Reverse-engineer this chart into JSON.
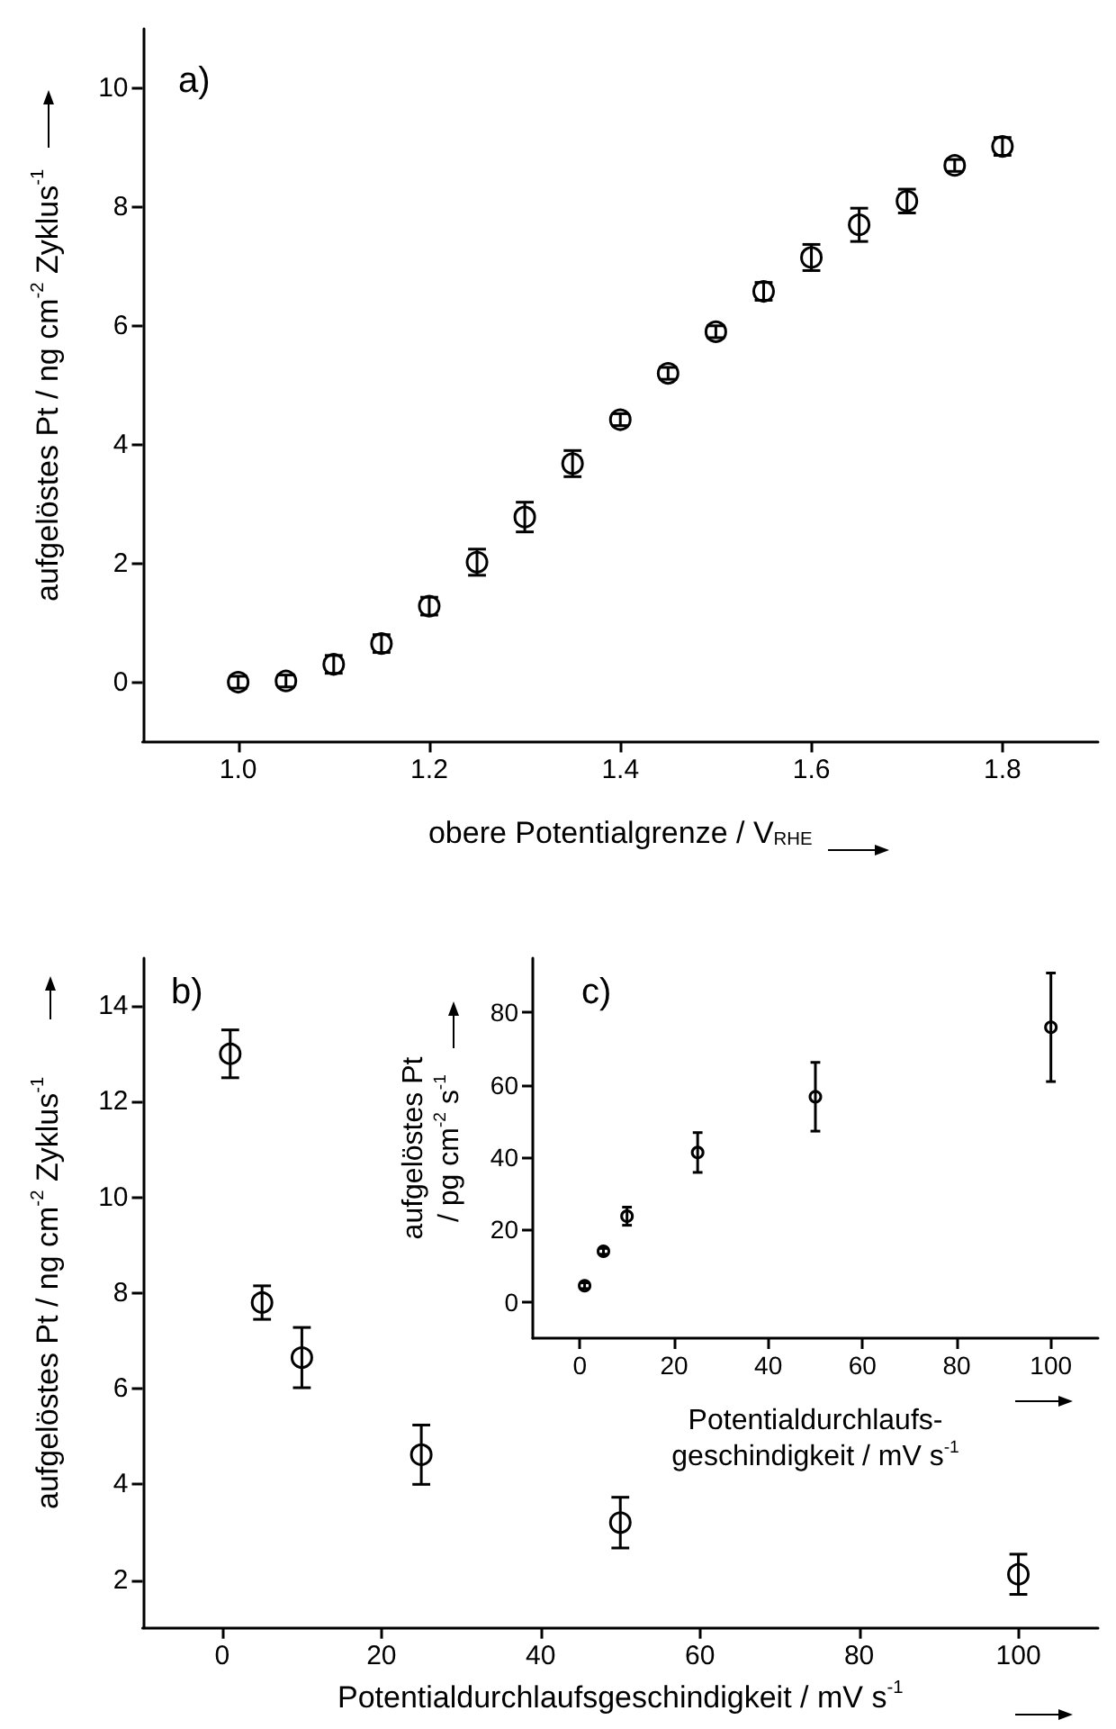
{
  "chart_data": [
    {
      "type": "scatter",
      "title": "a)",
      "xlabel": "obere Potentialgrenze / V$_{RHE}$",
      "ylabel": "aufgelöstes Pt / ng cm$^{-2}$ Zyklus$^{-1}$",
      "color": "#000000",
      "marker": "circle",
      "grid": false,
      "x": [
        1.0,
        1.05,
        1.1,
        1.15,
        1.2,
        1.25,
        1.3,
        1.35,
        1.4,
        1.45,
        1.5,
        1.55,
        1.6,
        1.65,
        1.7,
        1.75,
        1.8
      ],
      "values": [
        0,
        0.02,
        0.3,
        0.65,
        1.28,
        2.02,
        2.78,
        3.68,
        4.42,
        5.2,
        5.9,
        6.58,
        7.15,
        7.7,
        8.1,
        8.7,
        9.02
      ],
      "errors": [
        0.1,
        0.1,
        0.15,
        0.15,
        0.15,
        0.22,
        0.25,
        0.22,
        0.1,
        0.1,
        0.1,
        0.15,
        0.22,
        0.28,
        0.2,
        0.1,
        0.15
      ],
      "xlim": [
        0.9,
        1.9
      ],
      "xticks": [
        {
          "value": 1.0,
          "label": "1.0"
        },
        1.2,
        1.4,
        1.6,
        1.8
      ],
      "ylim": [
        -1,
        11
      ],
      "yticks": [
        0,
        2,
        4,
        6,
        8,
        10
      ]
    },
    {
      "type": "scatter",
      "title": "b)",
      "xlabel": "Potentialdurchlaufsgeschindigkeit / mV s$^{-1}$",
      "ylabel": "aufgelöstes Pt / ng cm$^{-2}$ Zyklus$^{-1}$",
      "color": "#000000",
      "marker": "circle",
      "grid": false,
      "x": [
        1,
        5,
        10,
        25,
        50,
        100
      ],
      "values": [
        13.0,
        7.8,
        6.65,
        4.62,
        3.2,
        2.12
      ],
      "errors": [
        0.5,
        0.35,
        0.63,
        0.62,
        0.53,
        0.42
      ],
      "xlim": [
        -10,
        110
      ],
      "xticks": [
        0,
        20,
        40,
        60,
        80,
        100
      ],
      "ylim": [
        1,
        15
      ],
      "yticks": [
        2,
        4,
        6,
        8,
        10,
        12,
        14
      ]
    },
    {
      "type": "scatter",
      "title": "c)",
      "xlabel": "Potentialdurchlaufs-\ngeschindigkeit / mV s$^{-1}$",
      "ylabel": "aufgelöstes Pt\n/ pg cm$^{-2}$ s$^{-1}$",
      "color": "#000000",
      "marker": "circle",
      "grid": false,
      "x": [
        1,
        5,
        10,
        25,
        50,
        100
      ],
      "values": [
        4.5,
        14,
        23.7,
        41.3,
        56.7,
        75.9
      ],
      "errors": [
        0.8,
        0.8,
        2.5,
        5.5,
        9.5,
        15
      ],
      "xlim": [
        -10,
        110
      ],
      "xticks": [
        0,
        20,
        40,
        60,
        80,
        100
      ],
      "ylim": [
        -10,
        95
      ],
      "yticks": [
        0,
        20,
        40,
        60,
        80
      ]
    }
  ]
}
